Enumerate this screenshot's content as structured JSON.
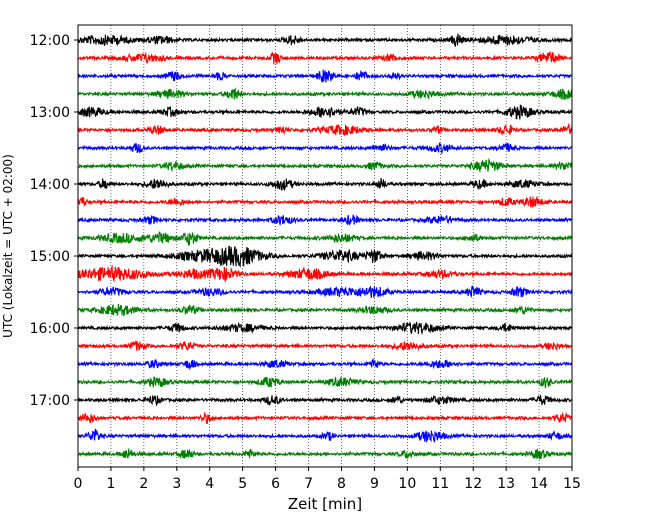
{
  "chart_data": {
    "type": "line",
    "title": "",
    "xlabel": "Zeit  [min]",
    "ylabel": "UTC (Lokalzeit = UTC + 02:00)",
    "xlim": [
      0,
      15
    ],
    "x_ticks": [
      0,
      1,
      2,
      3,
      4,
      5,
      6,
      7,
      8,
      9,
      10,
      11,
      12,
      13,
      14,
      15
    ],
    "x_tick_labels": [
      "0",
      "1",
      "2",
      "3",
      "4",
      "5",
      "6",
      "7",
      "8",
      "9",
      "10",
      "11",
      "12",
      "13",
      "14",
      "15"
    ],
    "y_ticks": [
      "12:00",
      "13:00",
      "14:00",
      "15:00",
      "16:00",
      "17:00"
    ],
    "grid": "vertical dotted lines at each minute",
    "trace_colors": [
      "#000000",
      "#ff0000",
      "#0000ff",
      "#008000"
    ],
    "traces": [
      {
        "start": "12:00",
        "color": "#000000",
        "events": [
          [
            0.8,
            1.0,
            4.0
          ],
          [
            2.5,
            0.8,
            2.0
          ],
          [
            6.5,
            1.0,
            1.0
          ],
          [
            11.5,
            1.6,
            0.6
          ],
          [
            13.0,
            1.0,
            4.0
          ]
        ]
      },
      {
        "start": "12:15",
        "color": "#ff0000",
        "events": [
          [
            2.0,
            0.9,
            3.0
          ],
          [
            6.0,
            1.3,
            0.6
          ],
          [
            9.5,
            0.8,
            1.0
          ],
          [
            14.3,
            1.3,
            1.5
          ]
        ]
      },
      {
        "start": "12:30",
        "color": "#0000ff",
        "events": [
          [
            2.9,
            1.0,
            1.0
          ],
          [
            4.3,
            0.8,
            0.6
          ],
          [
            7.5,
            1.4,
            1.0
          ],
          [
            8.6,
            1.2,
            0.6
          ],
          [
            9.6,
            0.8,
            0.6
          ]
        ]
      },
      {
        "start": "12:45",
        "color": "#008000",
        "events": [
          [
            2.8,
            0.9,
            2.0
          ],
          [
            4.7,
            1.4,
            0.8
          ],
          [
            10.5,
            0.8,
            2.0
          ],
          [
            14.8,
            1.0,
            2.0
          ]
        ]
      },
      {
        "start": "13:00",
        "color": "#000000",
        "events": [
          [
            0.4,
            1.0,
            2.0
          ],
          [
            2.8,
            0.9,
            1.0
          ],
          [
            7.5,
            1.2,
            2.0
          ],
          [
            8.5,
            0.9,
            1.0
          ],
          [
            13.4,
            1.4,
            2.0
          ]
        ]
      },
      {
        "start": "13:15",
        "color": "#ff0000",
        "events": [
          [
            2.4,
            0.9,
            1.0
          ],
          [
            6.2,
            0.8,
            0.6
          ],
          [
            8.0,
            1.0,
            3.0
          ],
          [
            10.9,
            0.8,
            0.6
          ],
          [
            13.0,
            1.1,
            1.0
          ],
          [
            14.9,
            1.0,
            1.0
          ]
        ]
      },
      {
        "start": "13:30",
        "color": "#0000ff",
        "events": [
          [
            1.8,
            1.0,
            0.8
          ],
          [
            9.2,
            0.8,
            1.0
          ],
          [
            11.0,
            0.8,
            2.0
          ],
          [
            13.0,
            0.9,
            1.0
          ]
        ]
      },
      {
        "start": "13:45",
        "color": "#008000",
        "events": [
          [
            2.9,
            0.9,
            1.5
          ],
          [
            9.0,
            0.8,
            1.0
          ],
          [
            12.4,
            1.3,
            2.0
          ],
          [
            14.8,
            0.8,
            1.5
          ]
        ]
      },
      {
        "start": "14:00",
        "color": "#000000",
        "events": [
          [
            0.8,
            1.1,
            0.6
          ],
          [
            2.4,
            1.1,
            1.5
          ],
          [
            6.2,
            1.2,
            1.5
          ],
          [
            9.2,
            1.1,
            0.6
          ],
          [
            12.2,
            0.9,
            1.0
          ],
          [
            13.5,
            0.8,
            2.0
          ]
        ]
      },
      {
        "start": "14:15",
        "color": "#ff0000",
        "events": [
          [
            0.1,
            1.1,
            0.6
          ],
          [
            3.0,
            0.8,
            1.0
          ],
          [
            13.0,
            0.9,
            1.0
          ],
          [
            13.8,
            1.1,
            1.5
          ]
        ]
      },
      {
        "start": "14:30",
        "color": "#0000ff",
        "events": [
          [
            2.2,
            0.8,
            1.0
          ],
          [
            6.2,
            1.0,
            1.5
          ],
          [
            8.3,
            1.0,
            1.0
          ],
          [
            11.0,
            0.8,
            2.0
          ]
        ]
      },
      {
        "start": "14:45",
        "color": "#008000",
        "events": [
          [
            1.3,
            1.0,
            3.0
          ],
          [
            2.5,
            1.1,
            2.0
          ],
          [
            3.4,
            1.5,
            1.0
          ],
          [
            8.0,
            0.9,
            2.0
          ],
          [
            12.0,
            0.8,
            1.0
          ]
        ]
      },
      {
        "start": "15:00",
        "color": "#000000",
        "events": [
          [
            4.2,
            1.5,
            6.0
          ],
          [
            5.0,
            1.2,
            3.0
          ],
          [
            8.0,
            1.2,
            3.0
          ],
          [
            9.0,
            1.4,
            1.0
          ],
          [
            10.5,
            0.9,
            2.0
          ]
        ]
      },
      {
        "start": "15:15",
        "color": "#ff0000",
        "events": [
          [
            1.0,
            1.4,
            6.0
          ],
          [
            3.5,
            1.0,
            2.0
          ],
          [
            4.4,
            1.4,
            2.0
          ],
          [
            7.0,
            1.2,
            3.0
          ],
          [
            11.0,
            0.8,
            2.0
          ]
        ]
      },
      {
        "start": "15:30",
        "color": "#0000ff",
        "events": [
          [
            1.0,
            0.8,
            2.0
          ],
          [
            4.0,
            0.8,
            2.0
          ],
          [
            8.0,
            0.9,
            4.0
          ],
          [
            9.0,
            1.0,
            2.0
          ],
          [
            12.0,
            1.3,
            0.8
          ],
          [
            13.4,
            1.1,
            1.0
          ]
        ]
      },
      {
        "start": "15:45",
        "color": "#008000",
        "events": [
          [
            1.2,
            1.1,
            3.0
          ],
          [
            3.4,
            1.0,
            1.0
          ],
          [
            9.0,
            0.8,
            2.0
          ],
          [
            13.5,
            0.8,
            1.0
          ]
        ]
      },
      {
        "start": "16:00",
        "color": "#000000",
        "events": [
          [
            3.0,
            0.9,
            1.0
          ],
          [
            5.0,
            0.8,
            3.0
          ],
          [
            10.3,
            1.2,
            3.0
          ],
          [
            13.0,
            0.8,
            1.0
          ]
        ]
      },
      {
        "start": "16:15",
        "color": "#ff0000",
        "events": [
          [
            1.8,
            1.0,
            1.0
          ],
          [
            3.3,
            0.9,
            1.0
          ],
          [
            10.0,
            0.9,
            2.0
          ],
          [
            14.4,
            0.8,
            1.0
          ]
        ]
      },
      {
        "start": "16:30",
        "color": "#0000ff",
        "events": [
          [
            2.3,
            0.8,
            1.0
          ],
          [
            3.4,
            1.1,
            0.6
          ],
          [
            6.0,
            0.8,
            1.5
          ],
          [
            9.0,
            1.0,
            0.6
          ],
          [
            11.0,
            0.8,
            2.0
          ]
        ]
      },
      {
        "start": "16:45",
        "color": "#008000",
        "events": [
          [
            2.4,
            1.0,
            1.5
          ],
          [
            5.8,
            1.0,
            1.5
          ],
          [
            8.0,
            0.9,
            2.0
          ],
          [
            14.2,
            1.2,
            0.6
          ]
        ]
      },
      {
        "start": "17:00",
        "color": "#000000",
        "events": [
          [
            2.3,
            0.9,
            1.0
          ],
          [
            5.9,
            1.0,
            1.0
          ],
          [
            9.7,
            0.9,
            0.6
          ],
          [
            11.0,
            0.8,
            2.0
          ],
          [
            14.1,
            1.0,
            1.0
          ]
        ]
      },
      {
        "start": "17:15",
        "color": "#ff0000",
        "events": [
          [
            0.3,
            1.0,
            1.0
          ],
          [
            3.9,
            1.0,
            0.6
          ],
          [
            14.7,
            1.0,
            0.8
          ]
        ]
      },
      {
        "start": "17:30",
        "color": "#0000ff",
        "events": [
          [
            0.5,
            1.4,
            0.8
          ],
          [
            7.6,
            0.9,
            0.6
          ],
          [
            10.7,
            1.3,
            2.0
          ],
          [
            14.5,
            0.8,
            1.0
          ]
        ]
      },
      {
        "start": "17:45",
        "color": "#008000",
        "events": [
          [
            1.5,
            1.2,
            0.6
          ],
          [
            3.3,
            1.1,
            0.8
          ],
          [
            5.2,
            1.0,
            0.6
          ],
          [
            10.0,
            0.8,
            1.0
          ],
          [
            14.0,
            1.0,
            1.0
          ]
        ]
      }
    ]
  }
}
